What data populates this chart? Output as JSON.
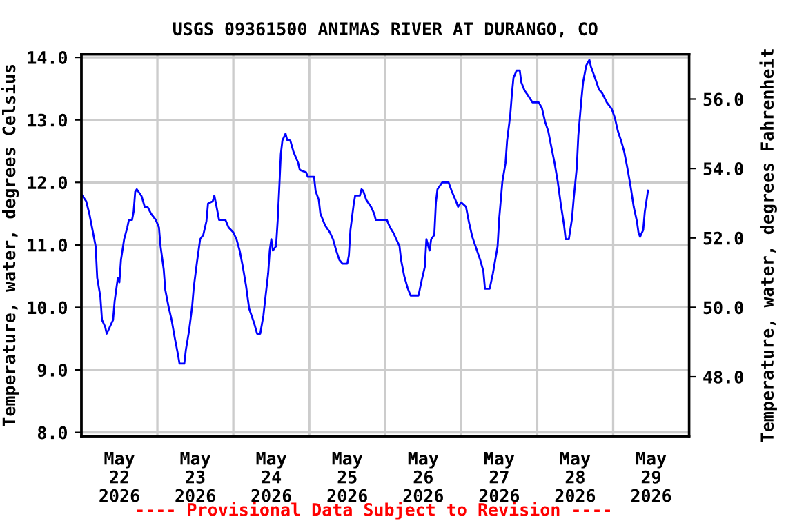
{
  "chart_data": {
    "type": "line",
    "title": "USGS 09361500 ANIMAS RIVER AT DURANGO, CO",
    "ylabel": "Temperature, water, degrees Celsius",
    "y2label": "Temperature, water, degrees Fahrenheit",
    "annotations": [
      "---- Provisional Data Subject to Revision ----"
    ],
    "xlim": [
      "2026-05-22T00:00",
      "2026-05-30T00:00"
    ],
    "xticks": [
      {
        "value": "2026-05-22T12:00",
        "label": "May\n22\n2026"
      },
      {
        "value": "2026-05-23T00:00",
        "label": null
      },
      {
        "value": "2026-05-23T12:00",
        "label": "May\n23\n2026"
      },
      {
        "value": "2026-05-24T00:00",
        "label": null
      },
      {
        "value": "2026-05-24T12:00",
        "label": "May\n24\n2026"
      },
      {
        "value": "2026-05-25T00:00",
        "label": null
      },
      {
        "value": "2026-05-25T12:00",
        "label": "May\n25\n2026"
      },
      {
        "value": "2026-05-26T00:00",
        "label": null
      },
      {
        "value": "2026-05-26T12:00",
        "label": "May\n26\n2026"
      },
      {
        "value": "2026-05-27T00:00",
        "label": null
      },
      {
        "value": "2026-05-27T12:00",
        "label": "May\n27\n2026"
      },
      {
        "value": "2026-05-28T00:00",
        "label": null
      },
      {
        "value": "2026-05-28T12:00",
        "label": "May\n28\n2026"
      },
      {
        "value": "2026-05-29T00:00",
        "label": null
      },
      {
        "value": "2026-05-29T12:00",
        "label": "May\n29\n2026"
      }
    ],
    "ylim": [
      7.94,
      14.05
    ],
    "yticks": [
      {
        "value": 8,
        "label": "8.0"
      },
      {
        "value": 9,
        "label": "9.0"
      },
      {
        "value": 10,
        "label": "10.0"
      },
      {
        "value": 11,
        "label": "11.0"
      },
      {
        "value": 12,
        "label": "12.0"
      },
      {
        "value": 13,
        "label": "13.0"
      },
      {
        "value": 14,
        "label": "14.0"
      }
    ],
    "y2lim": [
      46.29,
      57.29
    ],
    "y2ticks": [
      {
        "value": 48,
        "label": "48.0"
      },
      {
        "value": 50,
        "label": "50.0"
      },
      {
        "value": 52,
        "label": "52.0"
      },
      {
        "value": 54,
        "label": "54.0"
      },
      {
        "value": 56,
        "label": "56.0"
      }
    ],
    "grid": true,
    "legend": false,
    "marker": "none",
    "line_style": "solid",
    "series": [
      {
        "color": "#0000ff",
        "x": [
          "2026-05-22T00:00",
          "2026-05-22T01:30",
          "2026-05-22T02:30",
          "2026-05-22T03:30",
          "2026-05-22T04:30",
          "2026-05-22T05:00",
          "2026-05-22T06:00",
          "2026-05-22T06:30",
          "2026-05-22T07:30",
          "2026-05-22T08:00",
          "2026-05-22T09:00",
          "2026-05-22T10:00",
          "2026-05-22T10:30",
          "2026-05-22T11:30",
          "2026-05-22T12:00",
          "2026-05-22T12:30",
          "2026-05-22T13:30",
          "2026-05-22T14:30",
          "2026-05-22T15:00",
          "2026-05-22T16:00",
          "2026-05-22T16:30",
          "2026-05-22T17:00",
          "2026-05-22T17:30",
          "2026-05-22T19:00",
          "2026-05-22T20:00",
          "2026-05-22T21:00",
          "2026-05-22T22:00",
          "2026-05-22T23:30",
          "2026-05-23T00:30",
          "2026-05-23T01:00",
          "2026-05-23T02:00",
          "2026-05-23T02:30",
          "2026-05-23T03:30",
          "2026-05-23T04:30",
          "2026-05-23T05:30",
          "2026-05-23T06:30",
          "2026-05-23T07:00",
          "2026-05-23T08:30",
          "2026-05-23T09:00",
          "2026-05-23T10:00",
          "2026-05-23T11:00",
          "2026-05-23T11:30",
          "2026-05-23T12:30",
          "2026-05-23T13:30",
          "2026-05-23T14:30",
          "2026-05-23T15:30",
          "2026-05-23T16:00",
          "2026-05-23T17:30",
          "2026-05-23T18:00",
          "2026-05-23T19:00",
          "2026-05-23T19:30",
          "2026-05-23T21:30",
          "2026-05-23T22:30",
          "2026-05-24T00:00",
          "2026-05-24T01:00",
          "2026-05-24T02:00",
          "2026-05-24T03:00",
          "2026-05-24T04:00",
          "2026-05-24T05:00",
          "2026-05-24T06:30",
          "2026-05-24T07:30",
          "2026-05-24T08:30",
          "2026-05-24T09:30",
          "2026-05-24T10:00",
          "2026-05-24T11:00",
          "2026-05-24T11:30",
          "2026-05-24T12:00",
          "2026-05-24T12:30",
          "2026-05-24T13:30",
          "2026-05-24T14:00",
          "2026-05-24T14:30",
          "2026-05-24T15:00",
          "2026-05-24T15:30",
          "2026-05-24T16:30",
          "2026-05-24T17:00",
          "2026-05-24T18:00",
          "2026-05-24T19:00",
          "2026-05-24T20:30",
          "2026-05-24T21:00",
          "2026-05-24T23:00",
          "2026-05-24T23:30",
          "2026-05-25T01:30",
          "2026-05-25T02:00",
          "2026-05-25T03:00",
          "2026-05-25T03:30",
          "2026-05-25T05:00",
          "2026-05-25T06:30",
          "2026-05-25T07:30",
          "2026-05-25T08:30",
          "2026-05-25T09:30",
          "2026-05-25T10:30",
          "2026-05-25T12:00",
          "2026-05-25T12:30",
          "2026-05-25T13:00",
          "2026-05-25T14:00",
          "2026-05-25T14:30",
          "2026-05-25T16:00",
          "2026-05-25T16:30",
          "2026-05-25T17:00",
          "2026-05-25T18:00",
          "2026-05-25T19:30",
          "2026-05-25T20:30",
          "2026-05-25T21:00",
          "2026-05-26T00:30",
          "2026-05-26T01:30",
          "2026-05-26T02:30",
          "2026-05-26T03:30",
          "2026-05-26T04:30",
          "2026-05-26T05:00",
          "2026-05-26T06:00",
          "2026-05-26T07:00",
          "2026-05-26T08:00",
          "2026-05-26T10:30",
          "2026-05-26T11:30",
          "2026-05-26T12:30",
          "2026-05-26T13:00",
          "2026-05-26T14:00",
          "2026-05-26T14:30",
          "2026-05-26T15:30",
          "2026-05-26T16:00",
          "2026-05-26T16:30",
          "2026-05-26T18:00",
          "2026-05-26T20:00",
          "2026-05-26T21:00",
          "2026-05-26T22:30",
          "2026-05-26T23:00",
          "2026-05-27T00:00",
          "2026-05-27T01:30",
          "2026-05-27T02:30",
          "2026-05-27T03:30",
          "2026-05-27T04:30",
          "2026-05-27T06:00",
          "2026-05-27T07:00",
          "2026-05-27T07:30",
          "2026-05-27T09:00",
          "2026-05-27T10:00",
          "2026-05-27T11:30",
          "2026-05-27T12:00",
          "2026-05-27T13:00",
          "2026-05-27T14:00",
          "2026-05-27T14:30",
          "2026-05-27T15:30",
          "2026-05-27T16:00",
          "2026-05-27T16:30",
          "2026-05-27T17:30",
          "2026-05-27T18:30",
          "2026-05-27T19:00",
          "2026-05-27T20:00",
          "2026-05-27T21:00",
          "2026-05-27T22:30",
          "2026-05-28T00:30",
          "2026-05-28T01:30",
          "2026-05-28T02:30",
          "2026-05-28T03:30",
          "2026-05-28T04:30",
          "2026-05-28T05:30",
          "2026-05-28T06:30",
          "2026-05-28T07:30",
          "2026-05-28T08:30",
          "2026-05-28T09:00",
          "2026-05-28T10:00",
          "2026-05-28T11:00",
          "2026-05-28T11:30",
          "2026-05-28T12:30",
          "2026-05-28T13:00",
          "2026-05-28T14:00",
          "2026-05-28T14:30",
          "2026-05-28T15:30",
          "2026-05-28T16:30",
          "2026-05-28T17:00",
          "2026-05-28T18:00",
          "2026-05-28T19:30",
          "2026-05-28T20:30",
          "2026-05-28T22:00",
          "2026-05-28T23:30",
          "2026-05-29T00:30",
          "2026-05-29T01:30",
          "2026-05-29T02:30",
          "2026-05-29T03:30",
          "2026-05-29T04:30",
          "2026-05-29T05:30",
          "2026-05-29T06:30",
          "2026-05-29T07:30",
          "2026-05-29T08:00",
          "2026-05-29T08:30",
          "2026-05-29T09:30",
          "2026-05-29T10:00",
          "2026-05-29T11:00"
        ],
        "values": [
          11.81,
          11.7,
          11.5,
          11.24,
          10.98,
          10.47,
          10.17,
          9.8,
          9.69,
          9.58,
          9.69,
          9.8,
          10.1,
          10.47,
          10.4,
          10.76,
          11.09,
          11.28,
          11.4,
          11.4,
          11.53,
          11.85,
          11.89,
          11.78,
          11.61,
          11.6,
          11.5,
          11.4,
          11.28,
          10.98,
          10.61,
          10.28,
          10.02,
          9.8,
          9.51,
          9.25,
          9.1,
          9.1,
          9.32,
          9.62,
          10.02,
          10.32,
          10.72,
          11.09,
          11.16,
          11.38,
          11.66,
          11.7,
          11.79,
          11.53,
          11.4,
          11.4,
          11.28,
          11.2,
          11.09,
          10.91,
          10.65,
          10.35,
          9.98,
          9.76,
          9.58,
          9.58,
          9.87,
          10.1,
          10.54,
          10.91,
          11.09,
          10.91,
          10.98,
          11.38,
          11.9,
          12.45,
          12.67,
          12.78,
          12.68,
          12.67,
          12.49,
          12.31,
          12.2,
          12.16,
          12.09,
          12.09,
          11.86,
          11.72,
          11.5,
          11.31,
          11.2,
          11.09,
          10.91,
          10.76,
          10.7,
          10.7,
          10.83,
          11.24,
          11.64,
          11.79,
          11.79,
          11.89,
          11.87,
          11.72,
          11.61,
          11.5,
          11.4,
          11.4,
          11.28,
          11.2,
          11.09,
          10.98,
          10.76,
          10.5,
          10.32,
          10.19,
          10.19,
          10.43,
          10.65,
          11.09,
          10.91,
          11.09,
          11.16,
          11.68,
          11.89,
          12.0,
          12.0,
          11.86,
          11.68,
          11.61,
          11.68,
          11.61,
          11.35,
          11.13,
          10.98,
          10.76,
          10.58,
          10.3,
          10.3,
          10.54,
          10.98,
          11.42,
          12.01,
          12.31,
          12.67,
          13.08,
          13.41,
          13.67,
          13.79,
          13.79,
          13.6,
          13.47,
          13.4,
          13.28,
          13.28,
          13.19,
          12.97,
          12.82,
          12.56,
          12.31,
          12.01,
          11.64,
          11.31,
          11.09,
          11.09,
          11.42,
          11.72,
          12.23,
          12.75,
          13.34,
          13.6,
          13.87,
          13.96,
          13.85,
          13.71,
          13.49,
          13.43,
          13.28,
          13.18,
          13.04,
          12.82,
          12.67,
          12.49,
          12.23,
          11.94,
          11.61,
          11.38,
          11.2,
          11.13,
          11.24,
          11.53,
          11.87
        ]
      }
    ]
  }
}
